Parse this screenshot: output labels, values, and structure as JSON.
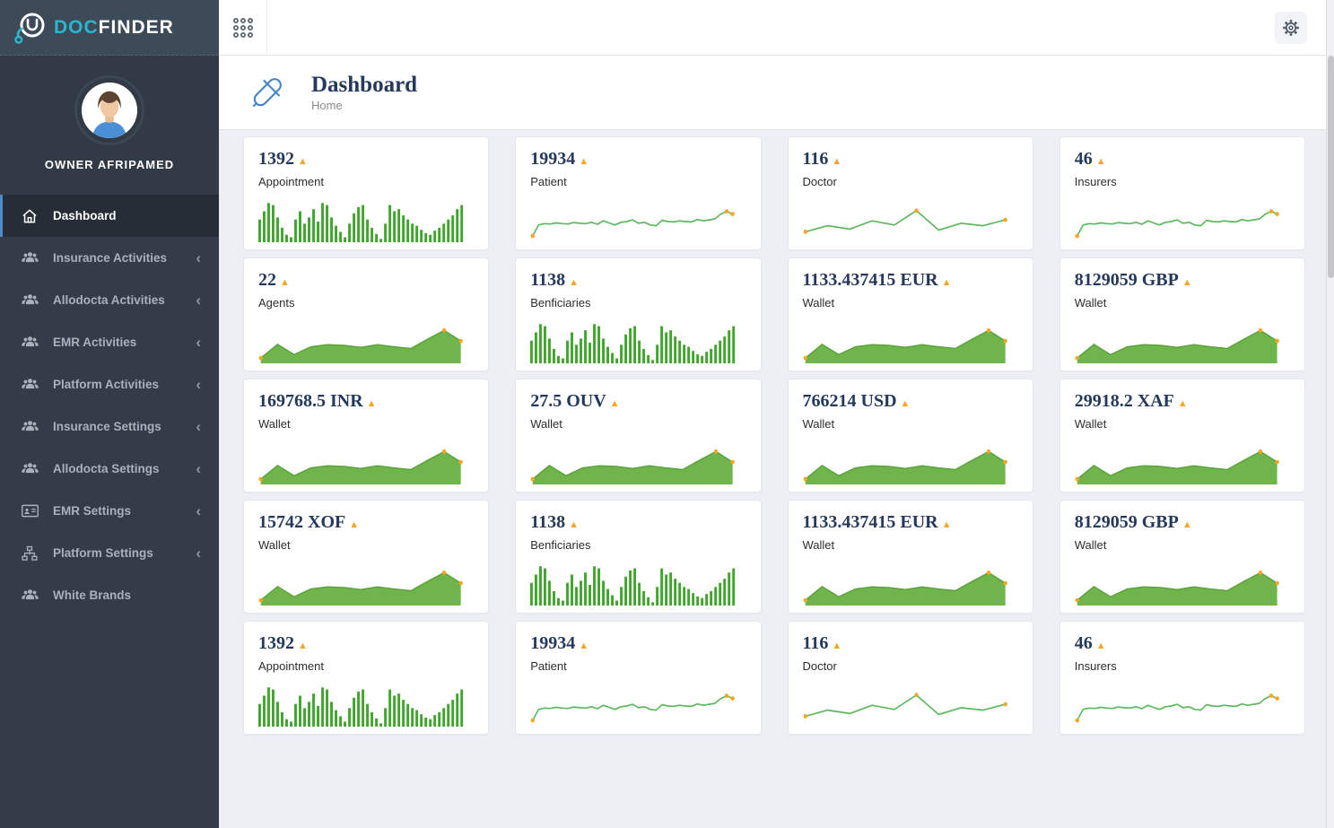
{
  "brand": {
    "doc": "DOC",
    "finder": "FINDER"
  },
  "sidebar": {
    "profile": {
      "name": "OWNER AFRIPAMED"
    },
    "items": [
      {
        "label": "Dashboard",
        "icon": "home-icon",
        "active": true,
        "chevron": false
      },
      {
        "label": "Insurance Activities",
        "icon": "users-icon",
        "active": false,
        "chevron": true
      },
      {
        "label": "Allodocta Activities",
        "icon": "users-icon",
        "active": false,
        "chevron": true
      },
      {
        "label": "EMR Activities",
        "icon": "users-icon",
        "active": false,
        "chevron": true
      },
      {
        "label": "Platform Activities",
        "icon": "users-icon",
        "active": false,
        "chevron": true
      },
      {
        "label": "Insurance Settings",
        "icon": "users-icon",
        "active": false,
        "chevron": true
      },
      {
        "label": "Allodocta Settings",
        "icon": "users-icon",
        "active": false,
        "chevron": true
      },
      {
        "label": "EMR Settings",
        "icon": "id-card-icon",
        "active": false,
        "chevron": true
      },
      {
        "label": "Platform Settings",
        "icon": "sitemap-icon",
        "active": false,
        "chevron": true
      },
      {
        "label": "White Brands",
        "icon": "users-icon",
        "active": false,
        "chevron": false
      }
    ]
  },
  "topbar": {
    "menu_icon": "apps-grid-icon",
    "settings_icon": "gear-icon"
  },
  "header": {
    "title": "Dashboard",
    "breadcrumb": "Home",
    "icon": "capsule-icon"
  },
  "trend_icon": "triangle-up-icon",
  "colors": {
    "accent_orange": "#f5a623",
    "bar_green": "#3fa52c",
    "line_green": "#5cb85c",
    "area_fill": "#6fb54b",
    "area_stroke": "#5aa33d",
    "number_navy": "#24395b",
    "brand_cyan": "#2cb5cf"
  },
  "charts": {
    "bars": {
      "type": "bar",
      "values": [
        55,
        75,
        95,
        90,
        60,
        35,
        18,
        12,
        55,
        75,
        45,
        60,
        80,
        50,
        95,
        90,
        60,
        40,
        25,
        12,
        45,
        70,
        85,
        90,
        55,
        35,
        20,
        8,
        45,
        90,
        75,
        80,
        65,
        55,
        45,
        40,
        30,
        22,
        18,
        28,
        35,
        45,
        55,
        65,
        80,
        90
      ],
      "markers": []
    },
    "line_many": {
      "type": "line",
      "values": [
        8,
        40,
        44,
        43,
        46,
        44,
        43,
        47,
        45,
        44,
        48,
        42,
        52,
        46,
        40,
        48,
        50,
        55,
        45,
        48,
        40,
        38,
        54,
        50,
        49,
        52,
        50,
        49,
        56,
        52,
        55,
        58,
        72,
        80,
        72
      ],
      "markers": [
        0,
        33,
        34
      ]
    },
    "line_few": {
      "type": "line",
      "values": [
        20,
        38,
        28,
        52,
        40,
        82,
        25,
        45,
        38,
        55
      ],
      "markers": [
        0,
        5,
        9
      ]
    },
    "area": {
      "type": "area",
      "values": [
        5,
        45,
        15,
        38,
        44,
        42,
        36,
        44,
        38,
        33,
        60,
        86,
        55
      ],
      "markers": [
        0,
        11,
        12
      ]
    }
  },
  "cards": [
    {
      "value": "1392",
      "label": "Appointment",
      "chart": "bars"
    },
    {
      "value": "19934",
      "label": "Patient",
      "chart": "line_many"
    },
    {
      "value": "116",
      "label": "Doctor",
      "chart": "line_few"
    },
    {
      "value": "46",
      "label": "Insurers",
      "chart": "line_many"
    },
    {
      "value": "22",
      "label": "Agents",
      "chart": "area"
    },
    {
      "value": "1138",
      "label": "Benficiaries",
      "chart": "bars"
    },
    {
      "value": "1133.437415 EUR",
      "label": "Wallet",
      "chart": "area"
    },
    {
      "value": "8129059 GBP",
      "label": "Wallet",
      "chart": "area"
    },
    {
      "value": "169768.5 INR",
      "label": "Wallet",
      "chart": "area"
    },
    {
      "value": "27.5 OUV",
      "label": "Wallet",
      "chart": "area"
    },
    {
      "value": "766214 USD",
      "label": "Wallet",
      "chart": "area"
    },
    {
      "value": "29918.2 XAF",
      "label": "Wallet",
      "chart": "area"
    },
    {
      "value": "15742 XOF",
      "label": "Wallet",
      "chart": "area"
    },
    {
      "value": "1138",
      "label": "Benficiaries",
      "chart": "bars"
    },
    {
      "value": "1133.437415 EUR",
      "label": "Wallet",
      "chart": "area"
    },
    {
      "value": "8129059 GBP",
      "label": "Wallet",
      "chart": "area"
    },
    {
      "value": "1392",
      "label": "Appointment",
      "chart": "bars"
    },
    {
      "value": "19934",
      "label": "Patient",
      "chart": "line_many"
    },
    {
      "value": "116",
      "label": "Doctor",
      "chart": "line_few"
    },
    {
      "value": "46",
      "label": "Insurers",
      "chart": "line_many"
    }
  ]
}
